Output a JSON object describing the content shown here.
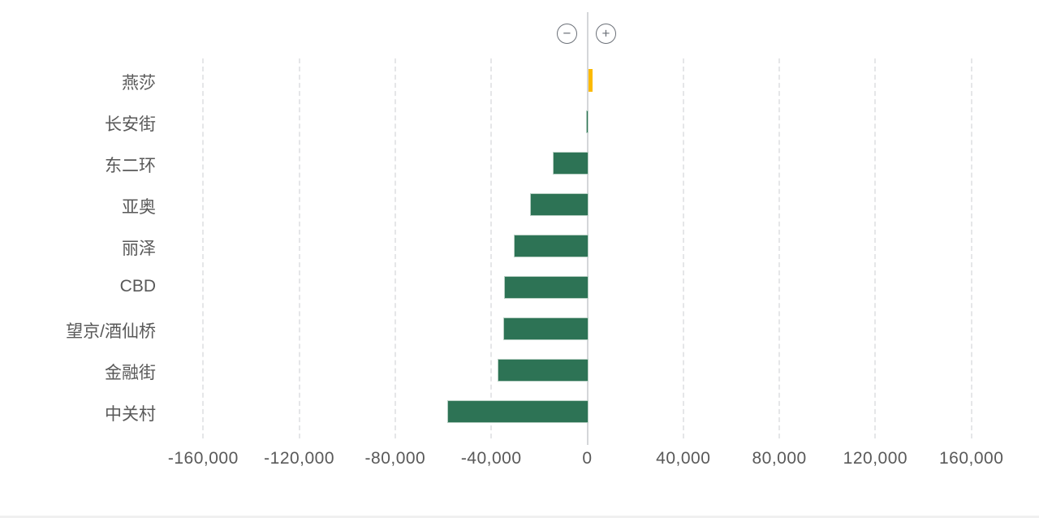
{
  "page": {
    "background_color": "#ffffff",
    "text_color": "#595959"
  },
  "controls": {
    "zoom_out_glyph": "−",
    "zoom_in_glyph": "+"
  },
  "chart_data": {
    "type": "bar",
    "orientation": "horizontal",
    "title": "",
    "xlabel": "",
    "ylabel": "",
    "categories": [
      "燕莎",
      "长安街",
      "东二环",
      "亚奥",
      "丽泽",
      "CBD",
      "望京/酒仙桥",
      "金融街",
      "中关村"
    ],
    "values": [
      2000,
      -1000,
      -15000,
      -24500,
      -31000,
      -35000,
      -35500,
      -38000,
      -59000
    ],
    "positive_color": "#fcba00",
    "negative_color": "#2d7355",
    "bar_border_color": "#b7cfc3",
    "xlim": [
      -180000,
      180000
    ],
    "x_ticks": [
      {
        "value": -160000,
        "label": "-160,000"
      },
      {
        "value": -120000,
        "label": "-120,000"
      },
      {
        "value": -80000,
        "label": "-80,000"
      },
      {
        "value": -40000,
        "label": "-40,000"
      },
      {
        "value": 0,
        "label": "0"
      },
      {
        "value": 40000,
        "label": "40,000"
      },
      {
        "value": 80000,
        "label": "80,000"
      },
      {
        "value": 120000,
        "label": "120,000"
      },
      {
        "value": 160000,
        "label": "160,000"
      }
    ],
    "grid": "vertical-dashed",
    "zero_axis": "solid-light-gray",
    "legend": null
  }
}
